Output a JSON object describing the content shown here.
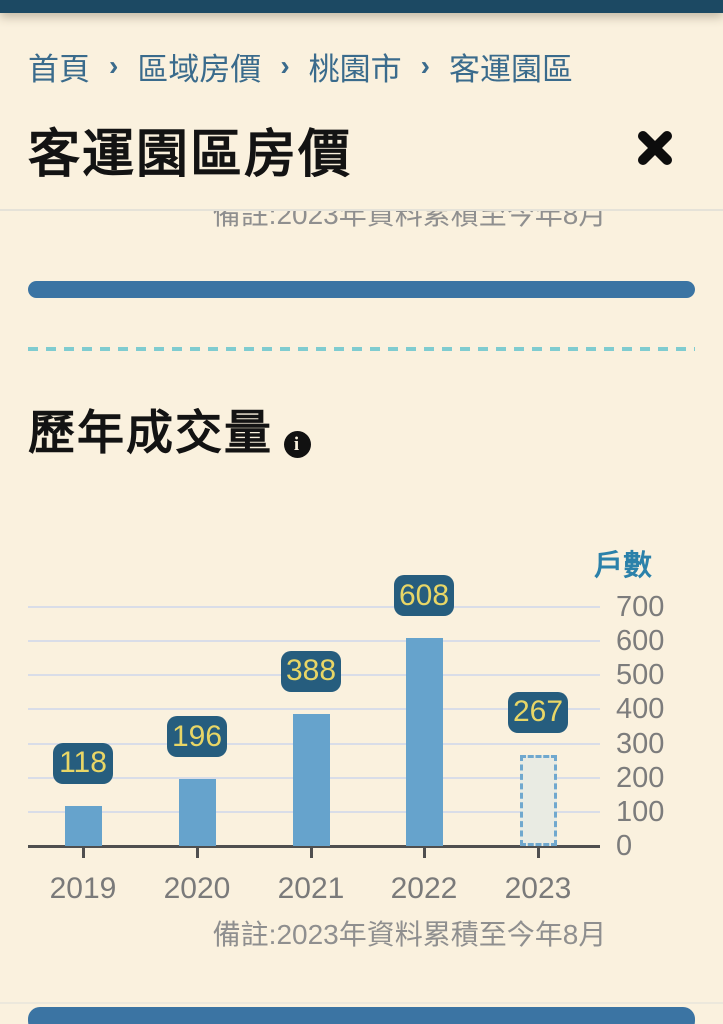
{
  "app": {
    "background": "#faf1de",
    "top_bar_color": "#1c4963",
    "accent_bar_color": "#3b74a3"
  },
  "breadcrumb": {
    "separator": "›",
    "items": [
      "首頁",
      "區域房價",
      "桃園市",
      "客運園區"
    ]
  },
  "header": {
    "title": "客運園區房價"
  },
  "section": {
    "title": "歷年成交量",
    "info_icon": "i"
  },
  "notes": {
    "clipped_note": "備註:2023年資料累積至今年8月"
  },
  "chart_data": {
    "type": "bar",
    "title": "歷年成交量",
    "ylabel": "戶數",
    "categories": [
      "2019",
      "2020",
      "2021",
      "2022",
      "2023"
    ],
    "values": [
      118,
      196,
      388,
      608,
      267
    ],
    "ylim": [
      0,
      700
    ],
    "yticks": [
      0,
      100,
      200,
      300,
      400,
      500,
      600,
      700
    ],
    "grid": true,
    "legend": "none",
    "bar_color": "#66a3cc",
    "value_badge_bg": "#265d7e",
    "value_badge_text": "#e8d666",
    "partial_bar": {
      "category": "2023",
      "value": 267,
      "style": "dashed-outline",
      "meaning": "年度累積中"
    },
    "note": "備註:2023年資料累積至今年8月"
  }
}
